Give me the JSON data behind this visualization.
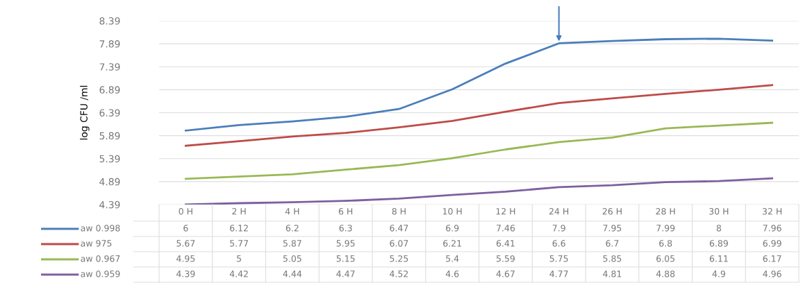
{
  "chart_data": {
    "type": "line",
    "ylabel": "log CFU /ml",
    "categories": [
      "0 H",
      "2 H",
      "4 H",
      "6 H",
      "8 H",
      "10 H",
      "12 H",
      "24 H",
      "26 H",
      "28 H",
      "30 H",
      "32 H"
    ],
    "series": [
      {
        "name": "aw 0.998",
        "color": "#4a7ebb",
        "values": [
          6,
          6.12,
          6.2,
          6.3,
          6.47,
          6.9,
          7.46,
          7.9,
          7.95,
          7.99,
          8,
          7.96
        ]
      },
      {
        "name": "aw 975",
        "color": "#be4b48",
        "values": [
          5.67,
          5.77,
          5.87,
          5.95,
          6.07,
          6.21,
          6.41,
          6.6,
          6.7,
          6.8,
          6.89,
          6.99
        ]
      },
      {
        "name": "aw 0.967",
        "color": "#98b954",
        "values": [
          4.95,
          5,
          5.05,
          5.15,
          5.25,
          5.4,
          5.59,
          5.75,
          5.85,
          6.05,
          6.11,
          6.17
        ]
      },
      {
        "name": "aw 0.959",
        "color": "#7d60a0",
        "values": [
          4.39,
          4.42,
          4.44,
          4.47,
          4.52,
          4.6,
          4.67,
          4.77,
          4.81,
          4.88,
          4.9,
          4.96
        ]
      }
    ],
    "ylim": [
      4.39,
      8.39
    ],
    "yticks": [
      4.39,
      4.89,
      5.39,
      5.89,
      6.39,
      6.89,
      7.39,
      7.89,
      8.39
    ],
    "grid": "y",
    "legend": "bottom left",
    "marker": "none",
    "line_style": "solid",
    "data_labels": true
  }
}
